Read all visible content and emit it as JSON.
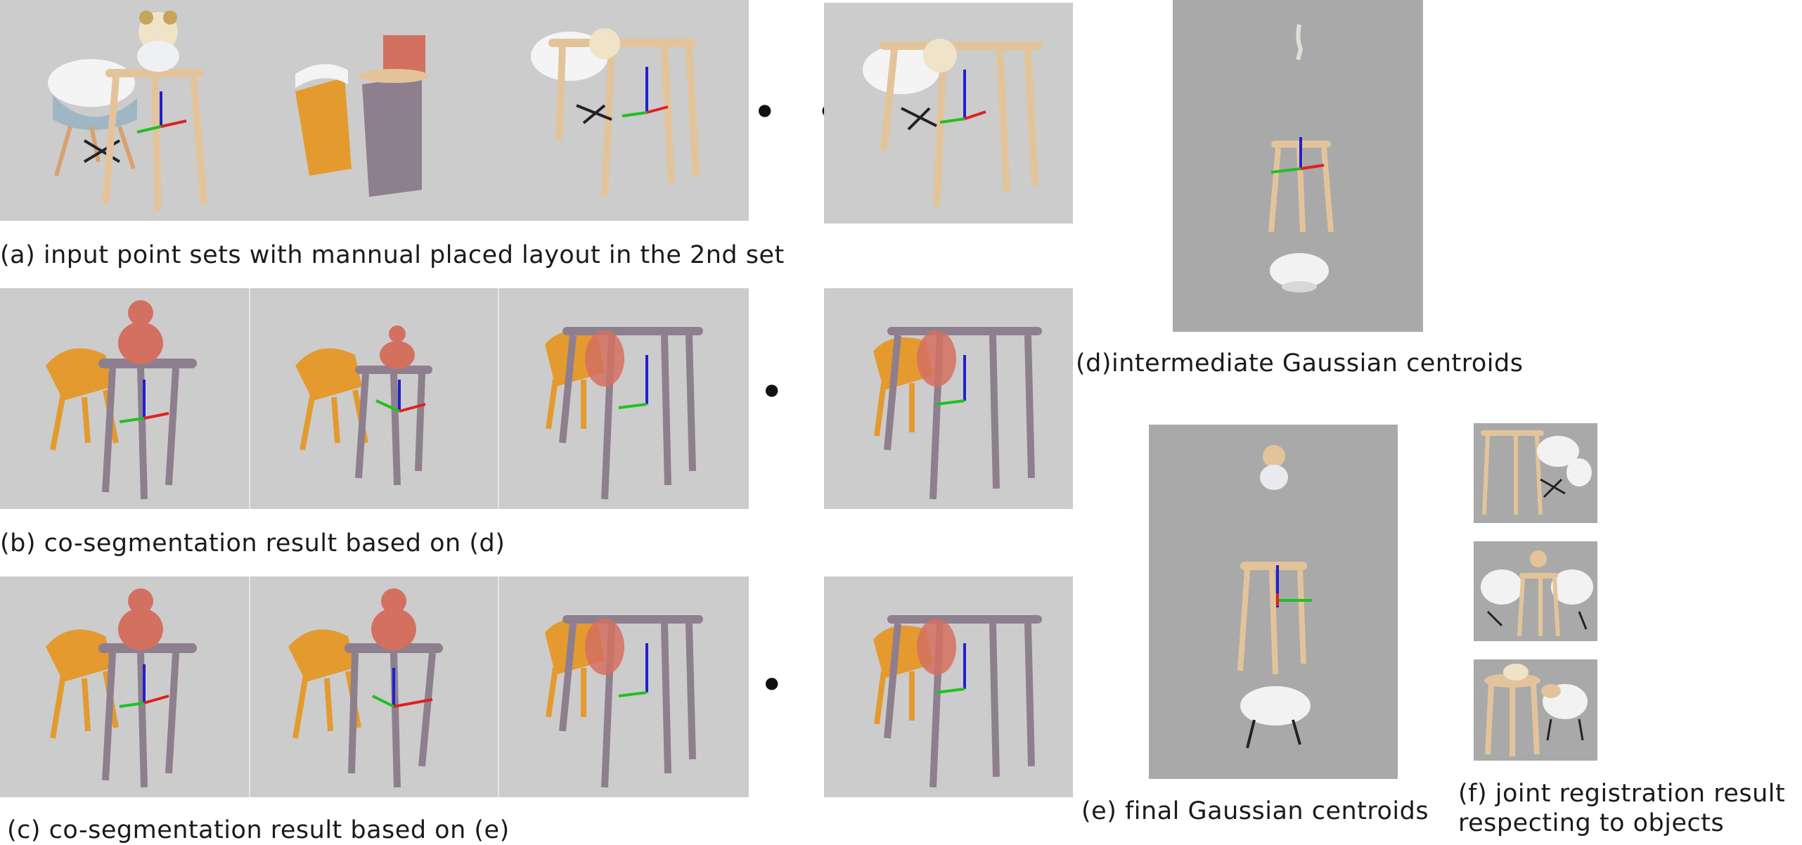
{
  "figure": {
    "captions": {
      "a": "(a) input point sets with mannual placed layout in the 2nd set",
      "b": "(b) co-segmentation result based on (d)",
      "c": "(c) co-segmentation result based on (e)",
      "d": "(d)intermediate Gaussian centroids",
      "e": "(e) final Gaussian centroids",
      "f_line1": "(f) joint registration result",
      "f_line2": "respecting to objects"
    },
    "ellipsis": "• • •"
  },
  "colors": {
    "panel_bg": "#cccccc",
    "panel_dark_bg": "#a9a9a9",
    "table": "#e3c49a",
    "chair_white": "#f2f2f2",
    "seg_chair": "#e49a2e",
    "seg_table": "#8e7f8f",
    "seg_bear": "#d47060",
    "axis_red": "#e02020",
    "axis_green": "#20c020",
    "axis_blue": "#2020d0"
  }
}
